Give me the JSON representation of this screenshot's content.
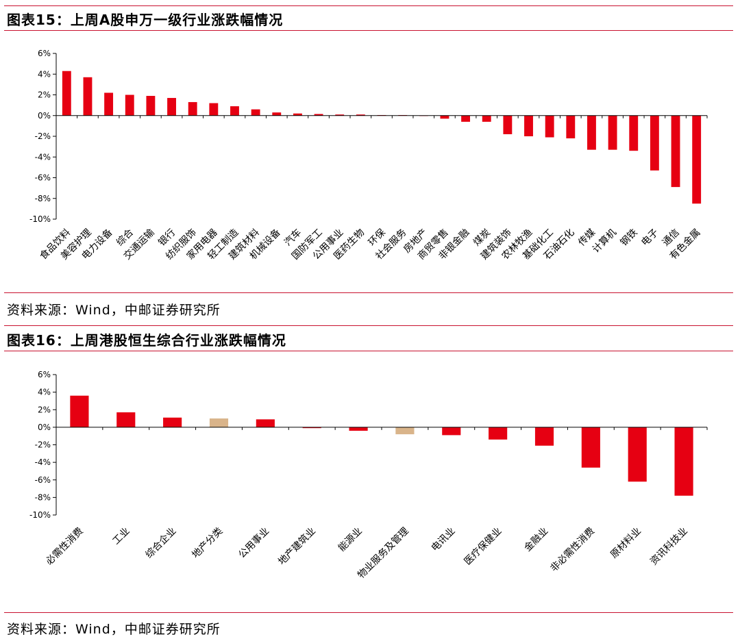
{
  "figures": [
    {
      "title": "图表15：上周A股申万一级行业涨跌幅情况",
      "source": "资料来源：Wind，中邮证券研究所"
    },
    {
      "title": "图表16：上周港股恒生综合行业涨跌幅情况",
      "source": "资料来源：Wind，中邮证券研究所"
    }
  ],
  "chart_data": [
    {
      "type": "bar",
      "categories": [
        "食品饮料",
        "美容护理",
        "电力设备",
        "综合",
        "交通运输",
        "银行",
        "纺织服饰",
        "家用电器",
        "轻工制造",
        "建筑材料",
        "机械设备",
        "汽车",
        "国防军工",
        "公用事业",
        "医药生物",
        "环保",
        "社会服务",
        "房地产",
        "商贸零售",
        "非银金融",
        "煤炭",
        "建筑装饰",
        "农林牧渔",
        "基础化工",
        "石油石化",
        "传媒",
        "计算机",
        "钢铁",
        "电子",
        "通信",
        "有色金属"
      ],
      "values": [
        4.3,
        3.7,
        2.2,
        2.0,
        1.9,
        1.7,
        1.3,
        1.2,
        0.9,
        0.6,
        0.3,
        0.2,
        0.15,
        0.1,
        0.1,
        0.05,
        0.05,
        0.0,
        -0.3,
        -0.6,
        -0.6,
        -1.8,
        -2.0,
        -2.1,
        -2.2,
        -3.3,
        -3.3,
        -3.4,
        -5.3,
        -6.9,
        -8.5
      ],
      "ylim": [
        -10,
        6
      ],
      "yticks": [
        6,
        4,
        2,
        0,
        -2,
        -4,
        -6,
        -8,
        -10
      ],
      "tick_suffix": "%",
      "bar_color": "#e60012",
      "grid": false
    },
    {
      "type": "bar",
      "categories": [
        "必需性消费",
        "工业",
        "综合企业",
        "地产分类",
        "公用事业",
        "地产建筑业",
        "能源业",
        "物业服务及管理",
        "电讯业",
        "医疗保健业",
        "金融业",
        "非必需性消费",
        "原材料业",
        "资讯科技业"
      ],
      "values": [
        3.6,
        1.7,
        1.1,
        1.0,
        0.9,
        -0.1,
        -0.4,
        -0.8,
        -0.9,
        -1.4,
        -2.1,
        -4.6,
        -6.2,
        -7.8
      ],
      "ylim": [
        -10,
        6
      ],
      "yticks": [
        6,
        4,
        2,
        0,
        -2,
        -4,
        -6,
        -8,
        -10
      ],
      "tick_suffix": "%",
      "bar_colors": [
        "#e60012",
        "#e60012",
        "#e60012",
        "#d9b48a",
        "#e60012",
        "#e60012",
        "#e60012",
        "#d9b48a",
        "#e60012",
        "#e60012",
        "#e60012",
        "#e60012",
        "#e60012",
        "#e60012"
      ],
      "grid": false
    }
  ]
}
